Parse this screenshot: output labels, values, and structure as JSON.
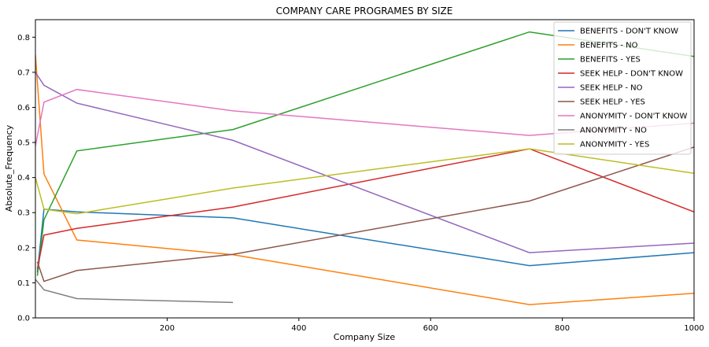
{
  "chart_data": {
    "type": "line",
    "title": "COMPANY CARE PROGRAMES BY SIZE",
    "xlabel": "Company Size",
    "ylabel": "Absolute_Frequency",
    "xlim": [
      0,
      1000
    ],
    "ylim": [
      0,
      0.85
    ],
    "xticks": [
      200,
      400,
      600,
      800,
      1000
    ],
    "yticks": [
      0.0,
      0.1,
      0.2,
      0.3,
      0.4,
      0.5,
      0.6,
      0.7,
      0.8
    ],
    "ytick_labels": [
      "0.0",
      "0.1",
      "0.2",
      "0.3",
      "0.4",
      "0.5",
      "0.6",
      "0.7",
      "0.8"
    ],
    "grid": false,
    "legend_position": "top-right",
    "series": [
      {
        "name": "BENEFITS - DON'T KNOW",
        "color": "#1f77b4",
        "x": [
          3,
          13,
          63,
          300,
          750,
          1000
        ],
        "y": [
          0.13,
          0.31,
          0.302,
          0.285,
          0.149,
          0.186
        ]
      },
      {
        "name": "BENEFITS - NO",
        "color": "#ff7f0e",
        "x": [
          0,
          13,
          63,
          300,
          750,
          1000
        ],
        "y": [
          0.75,
          0.41,
          0.222,
          0.18,
          0.038,
          0.07
        ]
      },
      {
        "name": "BENEFITS - YES",
        "color": "#2ca02c",
        "x": [
          3,
          13,
          63,
          300,
          750,
          1000
        ],
        "y": [
          0.12,
          0.28,
          0.476,
          0.537,
          0.815,
          0.745
        ]
      },
      {
        "name": "SEEK HELP - DON'T KNOW",
        "color": "#d62728",
        "x": [
          3,
          13,
          63,
          300,
          750,
          1000
        ],
        "y": [
          0.14,
          0.236,
          0.255,
          0.316,
          0.482,
          0.302
        ]
      },
      {
        "name": "SEEK HELP - NO",
        "color": "#9467bd",
        "x": [
          0,
          13,
          63,
          300,
          750,
          1000
        ],
        "y": [
          0.7,
          0.663,
          0.612,
          0.506,
          0.186,
          0.213
        ]
      },
      {
        "name": "SEEK HELP - YES",
        "color": "#8c564b",
        "x": [
          3,
          13,
          63,
          300,
          750,
          1000
        ],
        "y": [
          0.16,
          0.104,
          0.135,
          0.181,
          0.333,
          0.487
        ]
      },
      {
        "name": "ANONYMITY - DON'T KNOW",
        "color": "#e377c2",
        "x": [
          0,
          13,
          63,
          300,
          750,
          1000
        ],
        "y": [
          0.49,
          0.615,
          0.651,
          0.59,
          0.52,
          0.555
        ]
      },
      {
        "name": "ANONYMITY - NO",
        "color": "#7f7f7f",
        "x": [
          0,
          13,
          63,
          300
        ],
        "y": [
          0.11,
          0.08,
          0.055,
          0.044
        ]
      },
      {
        "name": "ANONYMITY - YES",
        "color": "#bcbd22",
        "x": [
          0,
          13,
          63,
          300,
          750,
          1000
        ],
        "y": [
          0.4,
          0.31,
          0.297,
          0.37,
          0.482,
          0.412
        ]
      }
    ]
  }
}
